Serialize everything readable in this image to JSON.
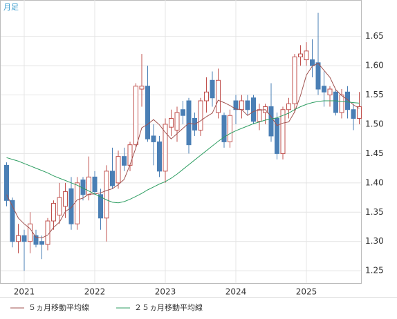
{
  "chart_data": {
    "type": "candlestick",
    "title": "月足",
    "categories": [
      null,
      null,
      null,
      "2021",
      null,
      null,
      null,
      null,
      null,
      null,
      null,
      null,
      null,
      null,
      null,
      "2022",
      null,
      null,
      null,
      null,
      null,
      null,
      null,
      null,
      null,
      null,
      null,
      "2023",
      null,
      null,
      null,
      null,
      null,
      null,
      null,
      null,
      null,
      null,
      null,
      "2024",
      null,
      null,
      null,
      null,
      null,
      null,
      null,
      null,
      null,
      null,
      null,
      "2025",
      null,
      null,
      null,
      null,
      null,
      null,
      null,
      null,
      null
    ],
    "open": [
      1.43,
      1.37,
      1.3,
      1.31,
      1.3,
      1.31,
      1.3,
      1.295,
      1.335,
      1.345,
      1.36,
      1.39,
      1.33,
      1.405,
      1.38,
      1.41,
      1.38,
      1.34,
      1.42,
      1.4,
      1.445,
      1.43,
      1.465,
      1.56,
      1.565,
      1.48,
      1.47,
      1.42,
      1.495,
      1.49,
      1.525,
      1.54,
      1.51,
      1.49,
      1.54,
      1.575,
      1.52,
      1.515,
      1.47,
      1.54,
      1.525,
      1.54,
      1.545,
      1.505,
      1.52,
      1.53,
      1.51,
      1.45,
      1.525,
      1.535,
      1.615,
      1.61,
      1.61,
      1.605,
      1.565,
      1.55,
      1.555,
      1.52,
      1.555,
      1.525,
      1.51
    ],
    "high": [
      1.435,
      1.375,
      1.33,
      1.32,
      1.35,
      1.32,
      1.31,
      1.34,
      1.37,
      1.4,
      1.4,
      1.41,
      1.41,
      1.41,
      1.445,
      1.42,
      1.39,
      1.43,
      1.46,
      1.455,
      1.46,
      1.47,
      1.57,
      1.62,
      1.6,
      1.5,
      1.48,
      1.51,
      1.525,
      1.53,
      1.54,
      1.545,
      1.52,
      1.545,
      1.58,
      1.59,
      1.595,
      1.52,
      1.525,
      1.55,
      1.55,
      1.55,
      1.55,
      1.535,
      1.535,
      1.57,
      1.52,
      1.53,
      1.545,
      1.62,
      1.635,
      1.64,
      1.645,
      1.69,
      1.59,
      1.565,
      1.56,
      1.56,
      1.565,
      1.535,
      1.555
    ],
    "low": [
      1.36,
      1.29,
      1.28,
      1.25,
      1.28,
      1.29,
      1.27,
      1.285,
      1.32,
      1.33,
      1.34,
      1.32,
      1.32,
      1.37,
      1.37,
      1.38,
      1.32,
      1.3,
      1.39,
      1.39,
      1.42,
      1.42,
      1.46,
      1.53,
      1.47,
      1.43,
      1.41,
      1.4,
      1.48,
      1.47,
      1.5,
      1.45,
      1.48,
      1.48,
      1.52,
      1.53,
      1.51,
      1.46,
      1.46,
      1.5,
      1.51,
      1.515,
      1.5,
      1.49,
      1.5,
      1.47,
      1.44,
      1.44,
      1.51,
      1.52,
      1.6,
      1.6,
      1.58,
      1.55,
      1.53,
      1.53,
      1.515,
      1.51,
      1.51,
      1.49,
      1.5
    ],
    "close": [
      1.37,
      1.3,
      1.31,
      1.3,
      1.33,
      1.295,
      1.295,
      1.335,
      1.365,
      1.375,
      1.385,
      1.33,
      1.4,
      1.38,
      1.41,
      1.385,
      1.34,
      1.42,
      1.395,
      1.445,
      1.43,
      1.465,
      1.565,
      1.565,
      1.475,
      1.47,
      1.42,
      1.5,
      1.51,
      1.52,
      1.515,
      1.465,
      1.49,
      1.54,
      1.555,
      1.545,
      1.575,
      1.47,
      1.515,
      1.525,
      1.54,
      1.525,
      1.505,
      1.525,
      1.53,
      1.48,
      1.45,
      1.525,
      1.535,
      1.615,
      1.62,
      1.625,
      1.6,
      1.56,
      1.555,
      1.56,
      1.52,
      1.55,
      1.525,
      1.51,
      1.53
    ],
    "up_color": "#c0504d",
    "down_color": "#4a7fb5",
    "lines": [
      {
        "name": "５ヵ月移動平均線",
        "color": "#a0524f",
        "values": [
          1.38,
          1.36,
          1.34,
          1.33,
          1.322,
          1.307,
          1.306,
          1.311,
          1.324,
          1.333,
          1.351,
          1.358,
          1.371,
          1.374,
          1.381,
          1.381,
          1.383,
          1.387,
          1.39,
          1.397,
          1.406,
          1.431,
          1.46,
          1.494,
          1.5,
          1.508,
          1.499,
          1.486,
          1.475,
          1.484,
          1.493,
          1.502,
          1.5,
          1.506,
          1.513,
          1.519,
          1.541,
          1.537,
          1.532,
          1.526,
          1.525,
          1.515,
          1.522,
          1.524,
          1.525,
          1.513,
          1.498,
          1.502,
          1.504,
          1.521,
          1.549,
          1.584,
          1.599,
          1.604,
          1.592,
          1.58,
          1.559,
          1.549,
          1.542,
          1.533,
          1.527
        ]
      },
      {
        "name": "２５ヵ月移動平均線",
        "color": "#2e9e62",
        "values": [
          1.443,
          1.44,
          1.437,
          1.433,
          1.429,
          1.425,
          1.421,
          1.417,
          1.412,
          1.408,
          1.404,
          1.4,
          1.396,
          1.391,
          1.386,
          1.381,
          1.376,
          1.371,
          1.367,
          1.366,
          1.368,
          1.372,
          1.377,
          1.382,
          1.388,
          1.393,
          1.398,
          1.402,
          1.408,
          1.415,
          1.423,
          1.431,
          1.439,
          1.447,
          1.455,
          1.463,
          1.471,
          1.478,
          1.484,
          1.489,
          1.493,
          1.497,
          1.501,
          1.504,
          1.507,
          1.509,
          1.511,
          1.515,
          1.519,
          1.525,
          1.53,
          1.534,
          1.537,
          1.539,
          1.54,
          1.54,
          1.54,
          1.539,
          1.538,
          1.537,
          1.536
        ]
      }
    ],
    "ylim": [
      1.229,
      1.712
    ],
    "yticks": [
      1.25,
      {
        "value": 1.3,
        "label": "1.30"
      },
      1.35,
      {
        "value": 1.4,
        "label": "1.40"
      },
      1.45,
      {
        "value": 1.5,
        "label": "1.50"
      },
      1.55,
      {
        "value": 1.6,
        "label": "1.60"
      },
      1.65
    ],
    "grid": true
  }
}
